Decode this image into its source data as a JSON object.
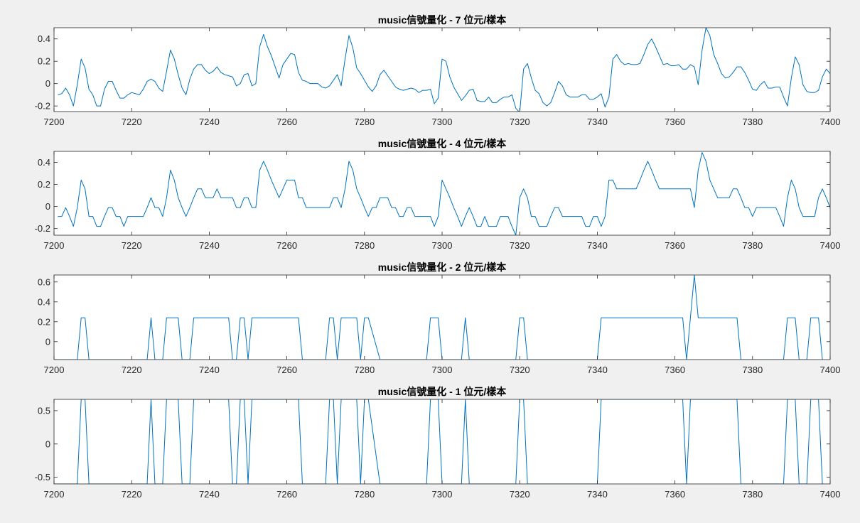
{
  "chart_data": [
    {
      "type": "line",
      "title": "music信號量化 - 7 位元/樣本",
      "xlim": [
        7200,
        7400
      ],
      "ylim": [
        -0.25,
        0.5
      ],
      "x_ticks": [
        7200,
        7220,
        7240,
        7260,
        7280,
        7300,
        7320,
        7340,
        7360,
        7380,
        7400
      ],
      "y_ticks": [
        -0.2,
        0,
        0.2,
        0.4
      ],
      "x_tick_labels": [
        "7200",
        "7220",
        "7240",
        "7260",
        "7280",
        "7300",
        "7320",
        "7340",
        "7360",
        "7380",
        "7400"
      ],
      "y_tick_labels": [
        "-0.2",
        "0",
        "0.2",
        "0.4"
      ],
      "color": "#0072bd",
      "series": [
        {
          "x_start": 7201,
          "values": [
            -0.1,
            -0.09,
            -0.04,
            -0.1,
            -0.2,
            -0.01,
            0.22,
            0.14,
            -0.05,
            -0.1,
            -0.2,
            -0.2,
            -0.05,
            0.02,
            0.02,
            -0.06,
            -0.13,
            -0.13,
            -0.1,
            -0.08,
            -0.09,
            -0.1,
            -0.05,
            0.02,
            0.04,
            0.02,
            -0.04,
            -0.07,
            0.11,
            0.3,
            0.22,
            0.08,
            -0.04,
            -0.1,
            0.04,
            0.13,
            0.17,
            0.17,
            0.12,
            0.09,
            0.11,
            0.15,
            0.1,
            0.08,
            0.07,
            0.06,
            -0.02,
            0.0,
            0.08,
            0.09,
            -0.02,
            0.0,
            0.33,
            0.44,
            0.33,
            0.25,
            0.15,
            0.05,
            0.17,
            0.22,
            0.27,
            0.26,
            0.1,
            0.03,
            0.02,
            0.0,
            0.0,
            0.0,
            -0.03,
            -0.04,
            -0.02,
            0.03,
            0.08,
            -0.02,
            0.22,
            0.43,
            0.32,
            0.14,
            0.09,
            0.03,
            -0.03,
            -0.07,
            -0.02,
            0.08,
            0.12,
            0.07,
            0.02,
            -0.03,
            -0.05,
            -0.06,
            -0.05,
            -0.04,
            -0.05,
            -0.08,
            -0.06,
            -0.06,
            -0.05,
            -0.18,
            -0.13,
            0.22,
            0.2,
            0.06,
            -0.03,
            -0.09,
            -0.15,
            -0.11,
            -0.06,
            -0.05,
            -0.15,
            -0.16,
            -0.16,
            -0.12,
            -0.17,
            -0.17,
            -0.14,
            -0.12,
            -0.12,
            -0.1,
            -0.22,
            -0.26,
            0.13,
            0.18,
            0.05,
            -0.06,
            -0.09,
            -0.17,
            -0.2,
            -0.17,
            -0.08,
            0.02,
            -0.02,
            -0.1,
            -0.12,
            -0.12,
            -0.12,
            -0.1,
            -0.1,
            -0.14,
            -0.14,
            -0.12,
            -0.09,
            -0.21,
            -0.12,
            0.22,
            0.26,
            0.2,
            0.17,
            0.18,
            0.17,
            0.17,
            0.18,
            0.26,
            0.35,
            0.4,
            0.33,
            0.25,
            0.17,
            0.18,
            0.16,
            0.16,
            0.17,
            0.13,
            0.13,
            0.17,
            0.15,
            -0.01,
            0.3,
            0.5,
            0.43,
            0.26,
            0.18,
            0.09,
            0.05,
            0.06,
            0.1,
            0.15,
            0.15,
            0.1,
            0.03,
            -0.05,
            -0.06,
            -0.01,
            0.02,
            -0.04,
            -0.04,
            -0.03,
            -0.03,
            -0.12,
            -0.2,
            0.05,
            0.24,
            0.17,
            -0.01,
            -0.07,
            -0.08,
            -0.08,
            -0.06,
            0.06,
            0.13,
            0.09,
            -0.02,
            -0.02,
            -0.02
          ]
        }
      ]
    },
    {
      "type": "line",
      "title": "music信號量化 - 4 位元/樣本",
      "xlim": [
        7200,
        7400
      ],
      "ylim": [
        -0.26,
        0.5
      ],
      "x_ticks": [
        7200,
        7220,
        7240,
        7260,
        7280,
        7300,
        7320,
        7340,
        7360,
        7380,
        7400
      ],
      "y_ticks": [
        -0.2,
        0,
        0.2,
        0.4
      ],
      "x_tick_labels": [
        "7200",
        "7220",
        "7240",
        "7260",
        "7280",
        "7300",
        "7320",
        "7340",
        "7360",
        "7380",
        "7400"
      ],
      "y_tick_labels": [
        "-0.2",
        "0",
        "0.2",
        "0.4"
      ],
      "color": "#0072bd",
      "series": [
        {
          "x_start": 7201,
          "values": [
            -0.09,
            -0.09,
            -0.01,
            -0.09,
            -0.18,
            -0.01,
            0.24,
            0.16,
            -0.09,
            -0.09,
            -0.18,
            -0.18,
            -0.09,
            -0.01,
            -0.01,
            -0.09,
            -0.09,
            -0.18,
            -0.09,
            -0.09,
            -0.09,
            -0.09,
            -0.09,
            -0.01,
            0.08,
            -0.01,
            -0.01,
            -0.09,
            0.08,
            0.33,
            0.24,
            0.08,
            -0.01,
            -0.09,
            -0.01,
            0.08,
            0.16,
            0.16,
            0.08,
            0.08,
            0.08,
            0.16,
            0.08,
            0.08,
            0.08,
            0.08,
            -0.01,
            -0.01,
            0.08,
            0.08,
            -0.01,
            -0.01,
            0.33,
            0.41,
            0.33,
            0.24,
            0.16,
            0.08,
            0.16,
            0.24,
            0.24,
            0.24,
            0.08,
            0.08,
            -0.01,
            -0.01,
            -0.01,
            -0.01,
            -0.01,
            -0.01,
            -0.01,
            0.08,
            0.08,
            -0.01,
            0.16,
            0.41,
            0.33,
            0.16,
            0.08,
            -0.01,
            -0.09,
            -0.01,
            -0.01,
            0.08,
            0.08,
            0.08,
            -0.01,
            -0.01,
            -0.09,
            -0.09,
            -0.01,
            -0.01,
            -0.09,
            -0.09,
            -0.09,
            -0.09,
            -0.09,
            -0.18,
            -0.09,
            0.24,
            0.16,
            0.08,
            -0.01,
            -0.09,
            -0.18,
            -0.09,
            -0.01,
            -0.09,
            -0.18,
            -0.18,
            -0.09,
            -0.18,
            -0.18,
            -0.18,
            -0.09,
            -0.09,
            -0.09,
            -0.18,
            -0.26,
            0.08,
            0.16,
            0.08,
            -0.09,
            -0.09,
            -0.18,
            -0.18,
            -0.18,
            -0.09,
            -0.01,
            -0.01,
            -0.09,
            -0.09,
            -0.09,
            -0.09,
            -0.09,
            -0.09,
            -0.18,
            -0.18,
            -0.09,
            -0.09,
            -0.18,
            -0.09,
            0.24,
            0.24,
            0.16,
            0.16,
            0.16,
            0.16,
            0.16,
            0.16,
            0.24,
            0.33,
            0.41,
            0.33,
            0.24,
            0.16,
            0.16,
            0.16,
            0.16,
            0.16,
            0.16,
            0.16,
            0.16,
            0.16,
            -0.01,
            0.33,
            0.49,
            0.41,
            0.24,
            0.16,
            0.08,
            0.08,
            0.08,
            0.08,
            0.16,
            0.16,
            0.08,
            -0.01,
            -0.01,
            -0.09,
            -0.01,
            -0.01,
            -0.01,
            -0.01,
            -0.01,
            -0.01,
            -0.09,
            -0.18,
            0.08,
            0.24,
            0.16,
            -0.01,
            -0.09,
            -0.09,
            -0.09,
            -0.09,
            0.08,
            0.16,
            0.08,
            -0.01,
            -0.01,
            -0.01
          ]
        }
      ]
    },
    {
      "type": "line",
      "title": "music信號量化 - 2 位元/樣本",
      "xlim": [
        7200,
        7400
      ],
      "ylim": [
        -0.18,
        0.67
      ],
      "x_ticks": [
        7200,
        7220,
        7240,
        7260,
        7280,
        7300,
        7320,
        7340,
        7360,
        7380,
        7400
      ],
      "y_ticks": [
        0,
        0.2,
        0.4,
        0.6
      ],
      "x_tick_labels": [
        "7200",
        "7220",
        "7240",
        "7260",
        "7280",
        "7300",
        "7320",
        "7340",
        "7360",
        "7380",
        "7400"
      ],
      "y_tick_labels": [
        "0",
        "0.2",
        "0.4",
        "0.6"
      ],
      "color": "#0072bd",
      "series": [
        {
          "x": [
            7200,
            7206,
            7207,
            7208,
            7209,
            7224,
            7225,
            7226,
            7228,
            7229,
            7232,
            7233,
            7235,
            7236,
            7245,
            7246,
            7247,
            7248,
            7249,
            7250,
            7251,
            7263,
            7264,
            7270,
            7271,
            7272,
            7273,
            7274,
            7278,
            7279,
            7280,
            7281,
            7284,
            7285,
            7296,
            7297,
            7299,
            7300,
            7305,
            7306,
            7307,
            7319,
            7320,
            7321,
            7322,
            7340,
            7341,
            7362,
            7363,
            7365,
            7366,
            7376,
            7377,
            7388,
            7389,
            7391,
            7392,
            7394,
            7395,
            7397,
            7398
          ],
          "values": [
            -0.18,
            -0.18,
            0.24,
            0.24,
            -0.18,
            -0.18,
            0.24,
            -0.18,
            -0.18,
            0.24,
            0.24,
            -0.18,
            -0.18,
            0.24,
            0.24,
            -0.18,
            -0.18,
            0.24,
            0.24,
            -0.18,
            0.24,
            0.24,
            -0.18,
            -0.18,
            0.24,
            0.24,
            -0.18,
            0.24,
            0.24,
            -0.18,
            0.24,
            0.24,
            -0.18,
            -0.18,
            -0.18,
            0.24,
            0.24,
            -0.18,
            -0.18,
            0.24,
            -0.18,
            -0.18,
            0.24,
            0.24,
            -0.18,
            -0.18,
            0.24,
            0.24,
            -0.18,
            0.67,
            0.24,
            0.24,
            -0.18,
            -0.18,
            0.24,
            0.24,
            -0.18,
            -0.18,
            0.24,
            0.24,
            -0.18
          ]
        }
      ]
    },
    {
      "type": "line",
      "title": "music信號量化 - 1 位元/樣本",
      "xlim": [
        7200,
        7400
      ],
      "ylim": [
        -0.6,
        0.67
      ],
      "x_ticks": [
        7200,
        7220,
        7240,
        7260,
        7280,
        7300,
        7320,
        7340,
        7360,
        7380,
        7400
      ],
      "y_ticks": [
        -0.5,
        0,
        0.5
      ],
      "x_tick_labels": [
        "7200",
        "7220",
        "7240",
        "7260",
        "7280",
        "7300",
        "7320",
        "7340",
        "7360",
        "7380",
        "7400"
      ],
      "y_tick_labels": [
        "-0.5",
        "0",
        "0.5"
      ],
      "color": "#0072bd",
      "series": [
        {
          "x": [
            7200,
            7206,
            7207,
            7208,
            7209,
            7224,
            7225,
            7226,
            7228,
            7229,
            7232,
            7233,
            7235,
            7236,
            7245,
            7246,
            7247,
            7248,
            7249,
            7250,
            7251,
            7263,
            7264,
            7270,
            7271,
            7272,
            7273,
            7274,
            7278,
            7279,
            7280,
            7281,
            7284,
            7285,
            7296,
            7297,
            7299,
            7300,
            7305,
            7306,
            7307,
            7319,
            7320,
            7321,
            7322,
            7340,
            7341,
            7362,
            7363,
            7364,
            7376,
            7377,
            7388,
            7389,
            7391,
            7392,
            7394,
            7395,
            7397,
            7398
          ],
          "values": [
            -0.6,
            -0.6,
            0.67,
            0.67,
            -0.6,
            -0.6,
            0.67,
            -0.6,
            -0.6,
            0.67,
            0.67,
            -0.6,
            -0.6,
            0.67,
            0.67,
            -0.6,
            -0.6,
            0.67,
            0.67,
            -0.6,
            0.67,
            0.67,
            -0.6,
            -0.6,
            0.67,
            0.67,
            -0.6,
            0.67,
            0.67,
            -0.6,
            0.67,
            0.67,
            -0.6,
            -0.6,
            -0.6,
            0.67,
            0.67,
            -0.6,
            -0.6,
            0.67,
            -0.6,
            -0.6,
            0.67,
            0.67,
            -0.6,
            -0.6,
            0.67,
            0.67,
            -0.6,
            0.67,
            0.67,
            -0.6,
            -0.6,
            0.67,
            0.67,
            -0.6,
            -0.6,
            0.67,
            0.67,
            -0.6
          ]
        }
      ]
    }
  ]
}
